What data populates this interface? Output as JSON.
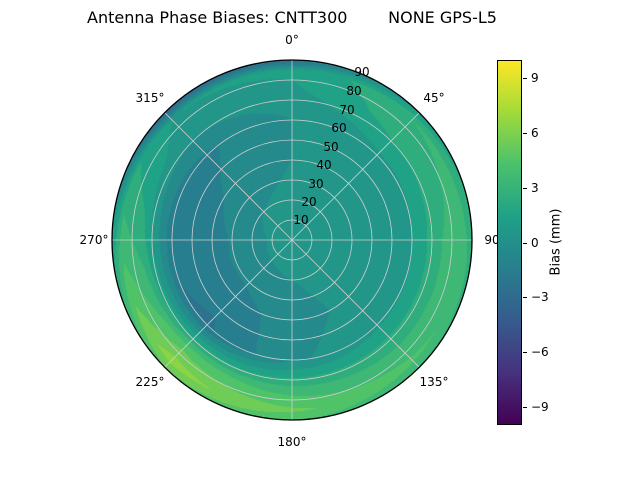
{
  "chart_data": {
    "type": "heatmap",
    "subtype": "polar_contourf_skyplot",
    "title": "Antenna Phase Biases: CNTT300        NONE GPS-L5",
    "angular_ticks": [
      "0°",
      "45°",
      "90",
      "135°",
      "180°",
      "225°",
      "270°",
      "315°"
    ],
    "radial_ticks": [
      "10",
      "20",
      "30",
      "40",
      "50",
      "60",
      "70",
      "80",
      "90"
    ],
    "radial_axis": {
      "min": 0,
      "max": 90
    },
    "grid": true,
    "contour_level_step_mm": 1,
    "colorbar": {
      "label": "Bias (mm)",
      "ticks": [
        "9",
        "6",
        "3",
        "0",
        "−3",
        "−6",
        "−9"
      ],
      "tick_values": [
        9,
        6,
        3,
        0,
        -3,
        -6,
        -9
      ],
      "range": [
        -10,
        10
      ]
    },
    "colormap": {
      "name": "viridis",
      "colors": [
        "#440154",
        "#46327e",
        "#365c8d",
        "#277f8e",
        "#1fa187",
        "#4ac16d",
        "#a0da39",
        "#fde725"
      ]
    },
    "field": {
      "azimuth_deg": [
        0,
        45,
        90,
        135,
        180,
        225,
        270,
        315
      ],
      "zenith_deg": [
        0,
        20,
        40,
        60,
        75,
        85,
        90
      ],
      "bias_mm": [
        [
          0.5,
          0.5,
          0.5,
          0.5,
          0.5,
          0.5,
          0.5,
          0.5
        ],
        [
          0.3,
          0.4,
          0.5,
          0.3,
          0.0,
          -0.2,
          -0.3,
          0.0
        ],
        [
          0.0,
          0.5,
          0.8,
          0.3,
          -0.5,
          -1.5,
          -1.5,
          -0.8
        ],
        [
          0.0,
          0.8,
          1.0,
          0.8,
          -0.2,
          -2.2,
          -1.8,
          -1.2
        ],
        [
          0.8,
          2.5,
          3.0,
          3.0,
          3.5,
          4.5,
          2.5,
          0.5
        ],
        [
          1.2,
          3.0,
          3.5,
          4.2,
          5.2,
          6.5,
          3.5,
          1.0
        ],
        [
          -3.0,
          1.0,
          2.5,
          3.0,
          4.0,
          5.0,
          1.0,
          -3.5
        ]
      ]
    }
  }
}
